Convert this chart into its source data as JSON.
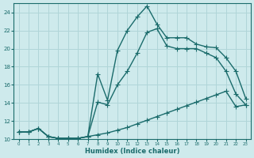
{
  "title": "",
  "xlabel": "Humidex (Indice chaleur)",
  "ylabel": "",
  "bg_color": "#ceeaec",
  "grid_color": "#b0d5d8",
  "line_color": "#1a6b6b",
  "xlim": [
    -0.5,
    23.5
  ],
  "ylim": [
    10,
    25
  ],
  "yticks": [
    10,
    12,
    14,
    16,
    18,
    20,
    22,
    24
  ],
  "xticks": [
    0,
    1,
    2,
    3,
    4,
    5,
    6,
    7,
    8,
    9,
    10,
    11,
    12,
    13,
    14,
    15,
    16,
    17,
    18,
    19,
    20,
    21,
    22,
    23
  ],
  "line1_x": [
    0,
    1,
    2,
    3,
    4,
    5,
    6,
    7,
    8,
    9,
    10,
    11,
    12,
    13,
    14,
    15,
    16,
    17,
    18,
    19,
    20,
    21,
    22,
    23
  ],
  "line1_y": [
    10.8,
    10.8,
    11.2,
    10.3,
    10.1,
    10.1,
    10.1,
    10.3,
    10.5,
    10.7,
    11.0,
    11.3,
    11.7,
    12.1,
    12.5,
    12.9,
    13.3,
    13.7,
    14.1,
    14.5,
    14.9,
    15.3,
    13.6,
    13.8
  ],
  "line2_x": [
    0,
    1,
    2,
    3,
    4,
    5,
    6,
    7,
    8,
    9,
    10,
    11,
    12,
    13,
    14,
    15,
    16,
    17,
    18,
    19,
    20,
    21,
    22,
    23
  ],
  "line2_y": [
    10.8,
    10.8,
    11.2,
    10.3,
    10.1,
    10.1,
    10.1,
    10.3,
    14.1,
    13.8,
    16.0,
    17.5,
    19.5,
    21.8,
    22.2,
    20.3,
    20.0,
    20.0,
    20.0,
    19.5,
    19.0,
    17.5,
    15.0,
    13.8
  ],
  "line3_x": [
    0,
    1,
    2,
    3,
    4,
    5,
    6,
    7,
    8,
    9,
    10,
    11,
    12,
    13,
    14,
    15,
    16,
    17,
    18,
    19,
    20,
    21,
    22,
    23
  ],
  "line3_y": [
    10.8,
    10.8,
    11.2,
    10.3,
    10.1,
    10.1,
    10.1,
    10.3,
    17.2,
    14.3,
    19.8,
    22.0,
    23.5,
    24.7,
    22.7,
    21.2,
    21.2,
    21.2,
    20.5,
    20.2,
    20.1,
    19.0,
    17.5,
    14.5
  ]
}
